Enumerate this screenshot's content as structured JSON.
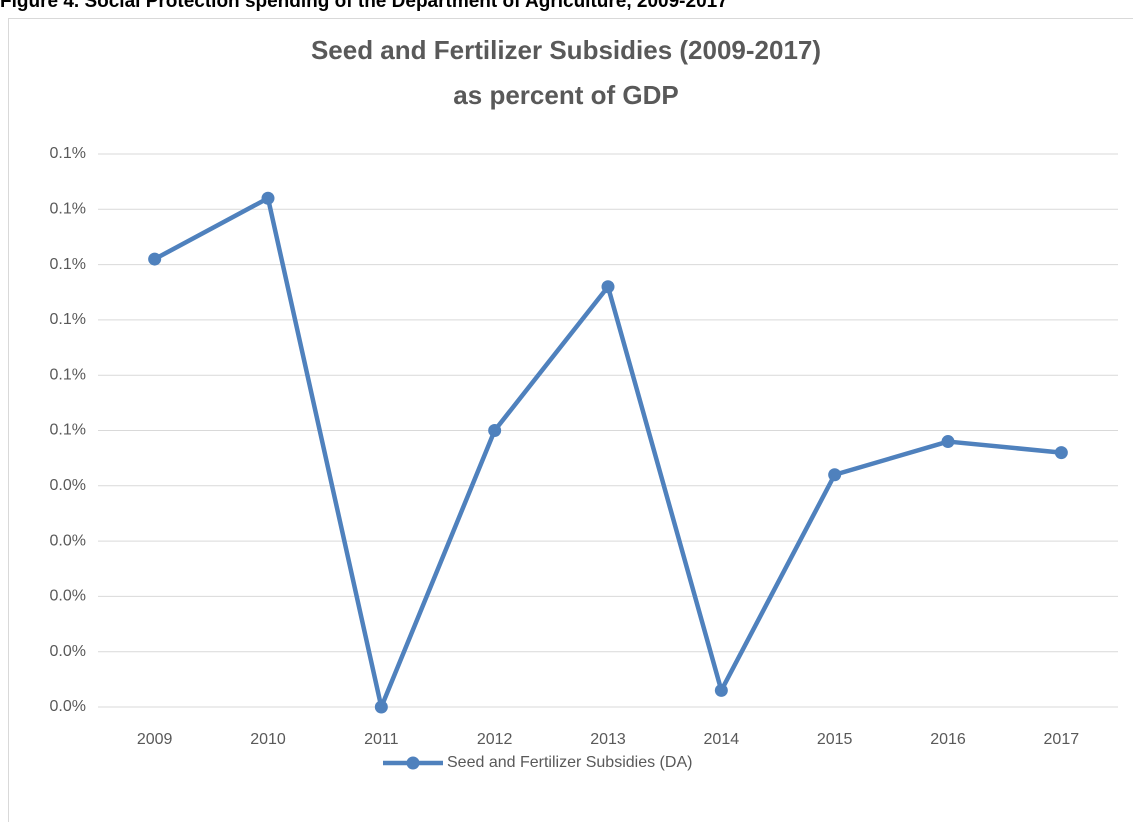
{
  "caption": "Figure 4. Social Protection spending of the Department of Agriculture, 2009-2017",
  "chart_data": {
    "type": "line",
    "title": [
      "Seed and Fertilizer Subsidies (2009-2017)",
      "as percent of GDP"
    ],
    "categories": [
      "2009",
      "2010",
      "2011",
      "2012",
      "2013",
      "2014",
      "2015",
      "2016",
      "2017"
    ],
    "series": [
      {
        "name": "Seed and Fertilizer Subsidies (DA)",
        "color": "#4f81bd",
        "values": [
          0.081,
          0.092,
          0,
          0.05,
          0.076,
          0.003,
          0.042,
          0.048,
          0.046
        ]
      }
    ],
    "ylim": [
      0,
      0.1
    ],
    "yticks": [
      {
        "value": 0,
        "label": "0.0%"
      },
      {
        "value": 0.01,
        "label": "0.0%"
      },
      {
        "value": 0.02,
        "label": "0.0%"
      },
      {
        "value": 0.03,
        "label": "0.0%"
      },
      {
        "value": 0.04,
        "label": "0.0%"
      },
      {
        "value": 0.05,
        "label": "0.1%"
      },
      {
        "value": 0.06,
        "label": "0.1%"
      },
      {
        "value": 0.07,
        "label": "0.1%"
      },
      {
        "value": 0.08,
        "label": "0.1%"
      },
      {
        "value": 0.09,
        "label": "0.1%"
      },
      {
        "value": 0.1,
        "label": "0.1%"
      }
    ],
    "grid": true,
    "legend": "bottom"
  }
}
